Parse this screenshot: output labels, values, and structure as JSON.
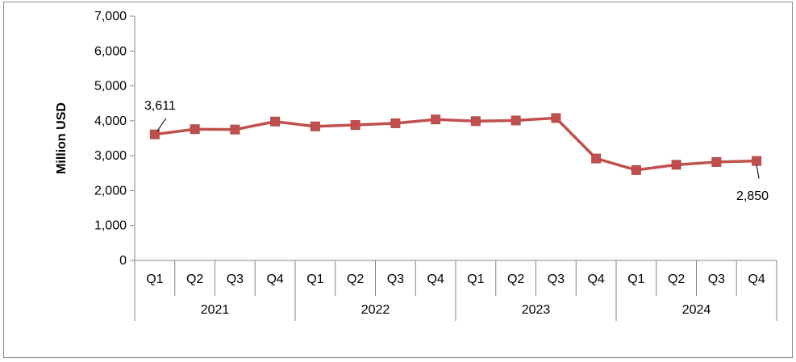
{
  "chart_data": {
    "type": "line",
    "ylabel": "Million USD",
    "xlabel": "",
    "title": "",
    "ylim": [
      0,
      7000
    ],
    "yticks": [
      0,
      1000,
      2000,
      3000,
      4000,
      5000,
      6000,
      7000
    ],
    "ytick_labels": [
      "0",
      "1,000",
      "2,000",
      "3,000",
      "4,000",
      "5,000",
      "6,000",
      "7,000"
    ],
    "quarters": [
      "Q1",
      "Q2",
      "Q3",
      "Q4",
      "Q1",
      "Q2",
      "Q3",
      "Q4",
      "Q1",
      "Q2",
      "Q3",
      "Q4",
      "Q1",
      "Q2",
      "Q3",
      "Q4"
    ],
    "years": [
      "2021",
      "2022",
      "2023",
      "2024"
    ],
    "series": [
      {
        "values": [
          3611,
          3760,
          3750,
          3980,
          3840,
          3880,
          3930,
          4040,
          3990,
          4010,
          4080,
          2920,
          2590,
          2740,
          2820,
          2850
        ],
        "color": "#c0504d"
      }
    ],
    "annotations": [
      {
        "index": 0,
        "text": "3,611"
      },
      {
        "index": 15,
        "text": "2,850"
      }
    ],
    "legend": "none",
    "grid": false
  }
}
